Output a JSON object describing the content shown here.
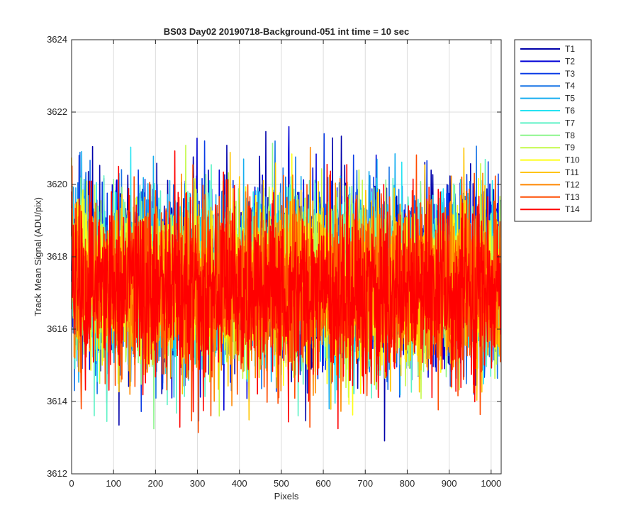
{
  "chart_data": {
    "type": "line",
    "title": "BS03 Day02 20190718-Background-051 int time = 10 sec",
    "xlabel": "Pixels",
    "ylabel": "Track Mean Signal (ADU/pix)",
    "xlim": [
      0,
      1024
    ],
    "ylim": [
      3612,
      3624
    ],
    "xticks": [
      0,
      100,
      200,
      300,
      400,
      500,
      600,
      700,
      800,
      900,
      1000
    ],
    "yticks": [
      3612,
      3614,
      3616,
      3618,
      3620,
      3622,
      3624
    ],
    "grid": true,
    "legend_position": "outside-top-right",
    "n_points": 1024,
    "series": [
      {
        "name": "T1",
        "color": "#0000aa",
        "mean": 3617.6,
        "spread": 1.25
      },
      {
        "name": "T2",
        "color": "#0000d6",
        "mean": 3617.5,
        "spread": 1.2
      },
      {
        "name": "T3",
        "color": "#0a3ce6",
        "mean": 3617.5,
        "spread": 1.15
      },
      {
        "name": "T4",
        "color": "#1673e6",
        "mean": 3617.4,
        "spread": 1.15
      },
      {
        "name": "T5",
        "color": "#17aef0",
        "mean": 3617.4,
        "spread": 1.1
      },
      {
        "name": "T6",
        "color": "#25e3f2",
        "mean": 3617.3,
        "spread": 1.1
      },
      {
        "name": "T7",
        "color": "#5ef2c6",
        "mean": 3617.3,
        "spread": 1.1
      },
      {
        "name": "T8",
        "color": "#8cf58c",
        "mean": 3617.3,
        "spread": 1.1
      },
      {
        "name": "T9",
        "color": "#c4fa4a",
        "mean": 3617.3,
        "spread": 1.1
      },
      {
        "name": "T10",
        "color": "#ffff14",
        "mean": 3617.2,
        "spread": 1.1
      },
      {
        "name": "T11",
        "color": "#ffc400",
        "mean": 3617.2,
        "spread": 1.15
      },
      {
        "name": "T12",
        "color": "#ff8800",
        "mean": 3617.2,
        "spread": 1.15
      },
      {
        "name": "T13",
        "color": "#ff4c00",
        "mean": 3617.1,
        "spread": 1.2
      },
      {
        "name": "T14",
        "color": "#ff0000",
        "mean": 3617.1,
        "spread": 1.25
      }
    ]
  }
}
